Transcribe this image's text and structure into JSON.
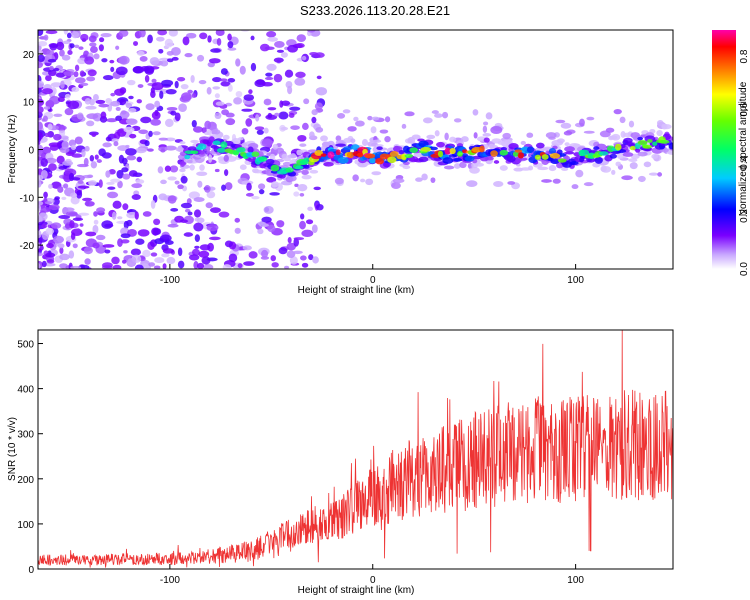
{
  "chart_data": [
    {
      "type": "heatmap",
      "title": "S233.2026.113.20.28.E21",
      "xlabel": "Height of straight line (km)",
      "ylabel": "Frequency (Hz)",
      "xlim": [
        -165,
        148
      ],
      "ylim": [
        -25,
        25
      ],
      "xticks": [
        -100,
        0,
        100
      ],
      "yticks": [
        -20,
        -10,
        0,
        10,
        20
      ],
      "colorbar": {
        "label": "Normalized spectral amplitude",
        "range": [
          0.0,
          0.9
        ],
        "ticks": [
          0.0,
          0.2,
          0.4,
          0.6,
          0.8
        ]
      },
      "ridge": {
        "description_points_x_km": [
          -95,
          -80,
          -60,
          -45,
          -35,
          -25,
          -15,
          -5,
          5,
          15,
          25,
          35,
          45,
          55,
          65,
          75,
          85,
          95,
          105,
          115,
          125,
          135,
          145
        ],
        "center_freq_hz": [
          -2,
          1,
          -1,
          -5,
          -3,
          -1,
          -1,
          -0.5,
          -2,
          -1,
          0,
          -1,
          -1,
          0,
          -1,
          -1,
          -1,
          -2,
          -1,
          -1,
          1,
          1,
          2
        ],
        "peak_amplitude": [
          0.35,
          0.45,
          0.45,
          0.5,
          0.5,
          0.8,
          0.85,
          0.8,
          0.8,
          0.6,
          0.75,
          0.75,
          0.7,
          0.75,
          0.55,
          0.8,
          0.7,
          0.55,
          0.5,
          0.5,
          0.55,
          0.5,
          0.5
        ]
      }
    },
    {
      "type": "line",
      "title": "",
      "xlabel": "Height of straight line (km)",
      "ylabel": "SNR (10 * v/v)",
      "xlim": [
        -165,
        148
      ],
      "ylim": [
        0,
        530
      ],
      "xticks": [
        -100,
        0,
        100
      ],
      "yticks": [
        0,
        100,
        200,
        300,
        400,
        500
      ],
      "series": [
        {
          "name": "SNR",
          "color": "#ee3333",
          "x": [
            -165,
            -140,
            -120,
            -100,
            -80,
            -60,
            -50,
            -40,
            -30,
            -20,
            -10,
            0,
            5,
            10,
            20,
            30,
            40,
            50,
            60,
            70,
            80,
            90,
            100,
            110,
            120,
            130,
            140,
            148
          ],
          "values": [
            20,
            20,
            22,
            22,
            28,
            40,
            55,
            75,
            95,
            110,
            130,
            175,
            150,
            190,
            200,
            215,
            225,
            240,
            250,
            260,
            265,
            260,
            265,
            270,
            275,
            275,
            270,
            280
          ]
        }
      ]
    }
  ]
}
